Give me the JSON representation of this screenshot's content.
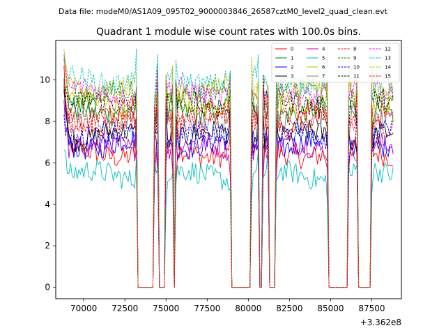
{
  "chart_data": {
    "type": "line",
    "suptitle": "Data file: modeM0/AS1A09_095T02_9000003846_26587cztM0_level2_quad_clean.evt",
    "title": "Quadrant 1 module wise count rates with 100.0s bins.",
    "xlabel": "",
    "ylabel": "",
    "offset_text": "+3.362e8",
    "x_offset": 336200000,
    "xlim": [
      68300,
      89300
    ],
    "ylim": [
      -0.55,
      11.9
    ],
    "xticks": [
      70000,
      72500,
      75000,
      77500,
      80000,
      82500,
      85000,
      87500
    ],
    "xtick_labels": [
      "70000",
      "72500",
      "75000",
      "77500",
      "80000",
      "82500",
      "85000",
      "87500"
    ],
    "yticks": [
      0,
      2,
      4,
      6,
      8,
      10
    ],
    "ytick_labels": [
      "0",
      "2",
      "4",
      "6",
      "8",
      "10"
    ],
    "x_start": 68800,
    "x_end": 88800,
    "bin": 100,
    "gaps": [
      [
        73300,
        74200
      ],
      [
        74600,
        74900
      ],
      [
        75500,
        75500
      ],
      [
        79000,
        80100
      ],
      [
        80700,
        80800
      ],
      [
        81300,
        81600
      ],
      [
        84900,
        86000
      ],
      [
        86700,
        87400
      ]
    ],
    "legend": {
      "location": "upper right",
      "columns": 4
    },
    "series": [
      {
        "name": "0",
        "color": "#ff0000",
        "dash": "solid",
        "level": 6.5,
        "start": 10.3
      },
      {
        "name": "1",
        "color": "#008000",
        "dash": "solid",
        "level": 8.6,
        "start": 10.5
      },
      {
        "name": "2",
        "color": "#0000ff",
        "dash": "solid",
        "level": 6.9,
        "start": 9.4
      },
      {
        "name": "3",
        "color": "#000000",
        "dash": "solid",
        "level": 7.3,
        "start": 9.8
      },
      {
        "name": "4",
        "color": "#bf00bf",
        "dash": "solid",
        "level": 6.7,
        "start": 8.9
      },
      {
        "name": "5",
        "color": "#00bfbf",
        "dash": "solid",
        "level": 5.4,
        "start": 6.5
      },
      {
        "name": "6",
        "color": "#bfbf00",
        "dash": "solid",
        "level": 8.9,
        "start": 10.6
      },
      {
        "name": "7",
        "color": "#808080",
        "dash": "solid",
        "level": 8.2,
        "start": 9.6
      },
      {
        "name": "8",
        "color": "#ff0000",
        "dash": "dashed",
        "level": 7.9,
        "start": 9.7
      },
      {
        "name": "9",
        "color": "#008000",
        "dash": "dashed",
        "level": 9.3,
        "start": 10.4
      },
      {
        "name": "10",
        "color": "#0000ff",
        "dash": "dashed",
        "level": 7.3,
        "start": 8.4
      },
      {
        "name": "11",
        "color": "#000000",
        "dash": "dashed",
        "level": 8.8,
        "start": 10.2
      },
      {
        "name": "12",
        "color": "#ff00ff",
        "dash": "dashed",
        "level": 9.4,
        "start": 10.7
      },
      {
        "name": "13",
        "color": "#00bfbf",
        "dash": "dashed",
        "level": 10.0,
        "start": 11.3
      },
      {
        "name": "14",
        "color": "#bfbf00",
        "dash": "dashed",
        "level": 9.6,
        "start": 10.9
      },
      {
        "name": "15",
        "color": "#ff0000",
        "dash": "dashed",
        "level": 8.3,
        "start": 10.0
      }
    ]
  }
}
